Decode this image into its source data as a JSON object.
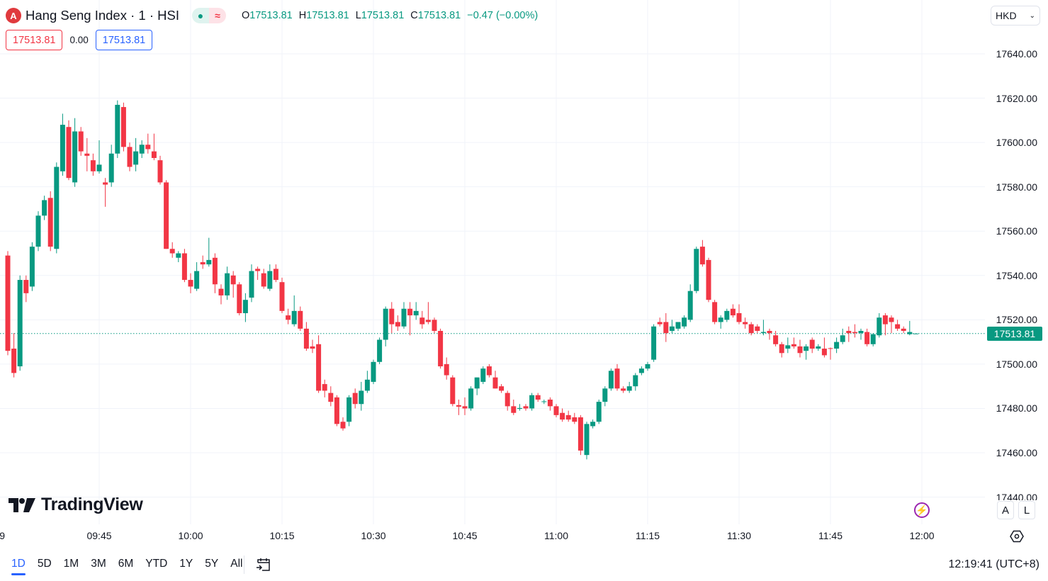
{
  "header": {
    "symbol_title": "Hang Seng Index · 1 · HSI",
    "logo_letter": "A",
    "ohlc": {
      "o_label": "O",
      "o": "17513.81",
      "h_label": "H",
      "h": "17513.81",
      "l_label": "L",
      "l": "17513.81",
      "c_label": "C",
      "c": "17513.81",
      "change": "−0.47 (−0.00%)"
    },
    "sell_price": "17513.81",
    "spread": "0.00",
    "buy_price": "17513.81"
  },
  "currency": {
    "selected": "HKD"
  },
  "price_axis": {
    "current_price": "17513.81"
  },
  "time_axis": {
    "clipped_first": "9"
  },
  "branding": {
    "logo_text": "TradingView"
  },
  "scale_buttons": {
    "auto": "A",
    "log": "L"
  },
  "ranges": [
    "1D",
    "5D",
    "1M",
    "3M",
    "6M",
    "YTD",
    "1Y",
    "5Y",
    "All"
  ],
  "active_range": "1D",
  "clock": "12:19:41 (UTC+8)",
  "colors": {
    "up": "#089981",
    "down": "#F23645",
    "accent": "#2962FF",
    "grid": "#F0F3FA"
  },
  "chart_data": {
    "type": "candlestick",
    "title": "Hang Seng Index · 1 · HSI",
    "interval_minutes": 1,
    "start_time": "09:30",
    "y_ticks": [
      "17440.00",
      "17460.00",
      "17480.00",
      "17500.00",
      "17520.00",
      "17540.00",
      "17560.00",
      "17580.00",
      "17600.00",
      "17620.00",
      "17640.00"
    ],
    "ylim": [
      17440,
      17640
    ],
    "x_ticks": [
      {
        "label": "09:45",
        "index": 15
      },
      {
        "label": "10:00",
        "index": 30
      },
      {
        "label": "10:15",
        "index": 45
      },
      {
        "label": "10:30",
        "index": 60
      },
      {
        "label": "10:45",
        "index": 75
      },
      {
        "label": "11:00",
        "index": 90
      },
      {
        "label": "11:15",
        "index": 105
      },
      {
        "label": "11:30",
        "index": 120
      },
      {
        "label": "11:45",
        "index": 135
      },
      {
        "label": "12:00",
        "index": 150
      }
    ],
    "last_price": 17513.81,
    "grid": true,
    "candles_ohlc": [
      [
        17549,
        17551,
        17504,
        17506
      ],
      [
        17507,
        17514,
        17494,
        17496
      ],
      [
        17499,
        17540,
        17497,
        17538
      ],
      [
        17538,
        17540,
        17528,
        17532
      ],
      [
        17535,
        17555,
        17533,
        17553
      ],
      [
        17553,
        17569,
        17551,
        17567
      ],
      [
        17567,
        17576,
        17565,
        17574
      ],
      [
        17575,
        17578,
        17551,
        17553
      ],
      [
        17552,
        17591,
        17550,
        17589
      ],
      [
        17587,
        17613,
        17585,
        17608
      ],
      [
        17607,
        17610,
        17583,
        17584
      ],
      [
        17582,
        17611,
        17580,
        17605
      ],
      [
        17605,
        17607,
        17594,
        17596
      ],
      [
        17595,
        17602,
        17587,
        17594
      ],
      [
        17592,
        17595,
        17585,
        17587
      ],
      [
        17587,
        17601,
        17586,
        17590
      ],
      [
        17582,
        17584,
        17571,
        17581
      ],
      [
        17582,
        17599,
        17580,
        17595
      ],
      [
        17595,
        17619,
        17593,
        17617
      ],
      [
        17616,
        17618,
        17596,
        17598
      ],
      [
        17598,
        17600,
        17587,
        17589
      ],
      [
        17590,
        17602,
        17587,
        17596
      ],
      [
        17595,
        17601,
        17593,
        17599
      ],
      [
        17599,
        17604,
        17595,
        17597
      ],
      [
        17596,
        17604,
        17592,
        17593
      ],
      [
        17592,
        17594,
        17581,
        17582
      ],
      [
        17582,
        17583,
        17552,
        17552
      ],
      [
        17552,
        17555,
        17548,
        17550
      ],
      [
        17548,
        17551,
        17546,
        17550
      ],
      [
        17550,
        17552,
        17537,
        17538
      ],
      [
        17538,
        17541,
        17532,
        17535
      ],
      [
        17534,
        17546,
        17533,
        17542
      ],
      [
        17546,
        17549,
        17543,
        17545
      ],
      [
        17545,
        17557,
        17544,
        17547
      ],
      [
        17548,
        17550,
        17532,
        17536
      ],
      [
        17534,
        17536,
        17527,
        17531
      ],
      [
        17531,
        17544,
        17529,
        17541
      ],
      [
        17540,
        17542,
        17530,
        17536
      ],
      [
        17536,
        17537,
        17522,
        17523
      ],
      [
        17523,
        17532,
        17519,
        17529
      ],
      [
        17530,
        17545,
        17528,
        17542
      ],
      [
        17543,
        17544,
        17538,
        17542
      ],
      [
        17541,
        17543,
        17534,
        17535
      ],
      [
        17534,
        17545,
        17533,
        17542
      ],
      [
        17543,
        17545,
        17537,
        17538
      ],
      [
        17537,
        17539,
        17523,
        17524
      ],
      [
        17522,
        17525,
        17518,
        17520
      ],
      [
        17518,
        17531,
        17517,
        17524
      ],
      [
        17524,
        17526,
        17515,
        17516
      ],
      [
        17516,
        17519,
        17506,
        17507
      ],
      [
        17508,
        17511,
        17505,
        17507
      ],
      [
        17509,
        17513,
        17487,
        17488
      ],
      [
        17491,
        17493,
        17485,
        17488
      ],
      [
        17487,
        17490,
        17481,
        17483
      ],
      [
        17485,
        17486,
        17472,
        17473
      ],
      [
        17474,
        17476,
        17470,
        17471
      ],
      [
        17474,
        17486,
        17472,
        17485
      ],
      [
        17487,
        17489,
        17480,
        17482
      ],
      [
        17482,
        17492,
        17479,
        17488
      ],
      [
        17488,
        17497,
        17487,
        17493
      ],
      [
        17492,
        17502,
        17491,
        17501
      ],
      [
        17501,
        17512,
        17500,
        17511
      ],
      [
        17511,
        17526,
        17508,
        17525
      ],
      [
        17525,
        17528,
        17514,
        17518
      ],
      [
        17519,
        17522,
        17515,
        17517
      ],
      [
        17517,
        17528,
        17516,
        17525
      ],
      [
        17525,
        17528,
        17513,
        17522
      ],
      [
        17522,
        17528,
        17520,
        17524
      ],
      [
        17521,
        17524,
        17516,
        17518
      ],
      [
        17520,
        17528,
        17518,
        17519
      ],
      [
        17520,
        17521,
        17514,
        17515
      ],
      [
        17515,
        17516,
        17498,
        17499
      ],
      [
        17500,
        17503,
        17493,
        17495
      ],
      [
        17494,
        17495,
        17481,
        17482
      ],
      [
        17481.5,
        17484,
        17477,
        17480.8
      ],
      [
        17481,
        17485,
        17477,
        17480
      ],
      [
        17480,
        17490,
        17479,
        17489
      ],
      [
        17489,
        17494,
        17486,
        17494
      ],
      [
        17492,
        17499,
        17491,
        17498
      ],
      [
        17499,
        17500,
        17494,
        17495
      ],
      [
        17494,
        17497,
        17489,
        17489
      ],
      [
        17490,
        17491,
        17487,
        17488
      ],
      [
        17487,
        17488,
        17479,
        17481
      ],
      [
        17481,
        17484,
        17477,
        17478
      ],
      [
        17479.8,
        17482,
        17479,
        17480.2
      ],
      [
        17481,
        17482,
        17479,
        17480
      ],
      [
        17480,
        17487,
        17479,
        17486
      ],
      [
        17486,
        17487,
        17483,
        17484
      ],
      [
        17483,
        17484,
        17482,
        17483.2
      ],
      [
        17484,
        17485,
        17479,
        17481
      ],
      [
        17481,
        17482,
        17476,
        17477
      ],
      [
        17478,
        17480,
        17474,
        17475
      ],
      [
        17477,
        17479,
        17474,
        17475
      ],
      [
        17476,
        17478,
        17473,
        17474
      ],
      [
        17476,
        17477,
        17459,
        17461
      ],
      [
        17459,
        17474,
        17457,
        17473
      ],
      [
        17472,
        17475,
        17471,
        17474
      ],
      [
        17474,
        17484,
        17473,
        17483
      ],
      [
        17483,
        17490,
        17481,
        17489
      ],
      [
        17489,
        17498,
        17488,
        17497
      ],
      [
        17498,
        17500,
        17488,
        17489
      ],
      [
        17489,
        17490,
        17487,
        17488
      ],
      [
        17488,
        17492,
        17487,
        17490
      ],
      [
        17490,
        17496,
        17488,
        17495
      ],
      [
        17496,
        17499,
        17495,
        17498
      ],
      [
        17498,
        17501,
        17497,
        17500
      ],
      [
        17502,
        17518,
        17501,
        17517
      ],
      [
        17519,
        17521,
        17517,
        17518
      ],
      [
        17519,
        17523,
        17510,
        17514
      ],
      [
        17515,
        17520,
        17514,
        17517
      ],
      [
        17516,
        17519,
        17515,
        17519
      ],
      [
        17517,
        17522,
        17516,
        17521
      ],
      [
        17520,
        17536,
        17519,
        17533
      ],
      [
        17533,
        17553,
        17532,
        17552
      ],
      [
        17553,
        17556,
        17544,
        17545
      ],
      [
        17547,
        17548,
        17528,
        17529
      ],
      [
        17528,
        17529,
        17518,
        17519
      ],
      [
        17519,
        17522,
        17516,
        17521
      ],
      [
        17520,
        17525,
        17519,
        17524
      ],
      [
        17525,
        17527,
        17521,
        17522
      ],
      [
        17523,
        17527,
        17518,
        17519
      ],
      [
        17519,
        17521,
        17516,
        17518
      ],
      [
        17518,
        17519,
        17513,
        17514
      ],
      [
        17517,
        17518,
        17514,
        17515
      ],
      [
        17514,
        17520,
        17513,
        17514.5
      ],
      [
        17515,
        17516,
        17511,
        17514
      ],
      [
        17513,
        17515,
        17508,
        17509
      ],
      [
        17509,
        17510,
        17503,
        17505
      ],
      [
        17507,
        17512,
        17505,
        17508.5
      ],
      [
        17509,
        17512,
        17507,
        17508
      ],
      [
        17508,
        17511,
        17503,
        17505
      ],
      [
        17506,
        17509,
        17502,
        17508
      ],
      [
        17511,
        17512,
        17505,
        17507
      ],
      [
        17507,
        17509,
        17506,
        17508
      ],
      [
        17507,
        17512,
        17503,
        17504
      ],
      [
        17507.2,
        17507.5,
        17502,
        17507
      ],
      [
        17507,
        17512,
        17505,
        17510
      ],
      [
        17510,
        17516,
        17509,
        17513
      ],
      [
        17515,
        17517,
        17510,
        17514
      ],
      [
        17514.5,
        17518,
        17512,
        17514
      ],
      [
        17514,
        17516,
        17511,
        17515
      ],
      [
        17514.5,
        17516,
        17508,
        17509
      ],
      [
        17509,
        17514,
        17508,
        17513.5
      ],
      [
        17513,
        17523,
        17512,
        17521
      ],
      [
        17522,
        17523,
        17513,
        17518
      ],
      [
        17521,
        17522,
        17514,
        17519
      ],
      [
        17518,
        17520,
        17515,
        17516
      ],
      [
        17516,
        17517,
        17514,
        17515
      ],
      [
        17513.5,
        17519.5,
        17513,
        17514.5
      ],
      [
        17513.81,
        17513.81,
        17513.81,
        17513.81
      ]
    ]
  }
}
